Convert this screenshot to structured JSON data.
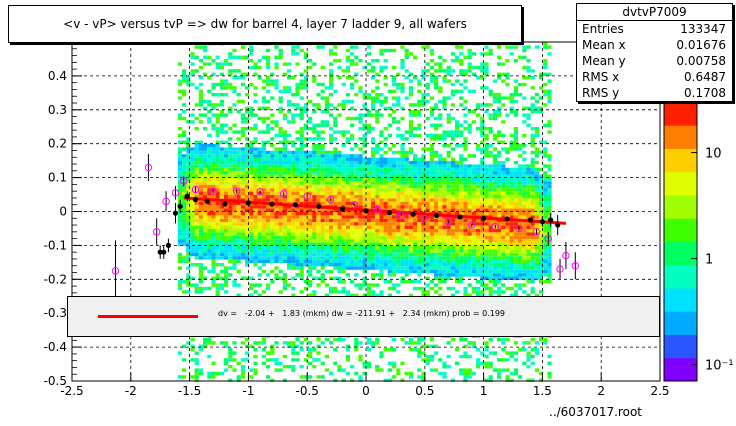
{
  "title": "<v - vP>       versus  tvP =>  dw for barrel 4, layer 7 ladder 9, all wafers",
  "stats": {
    "name": "dvtvP7009",
    "rows": [
      {
        "label": "Entries",
        "value": "133347"
      },
      {
        "label": "Mean x",
        "value": "0.01676"
      },
      {
        "label": "Mean y",
        "value": "0.00758"
      },
      {
        "label": "RMS x",
        "value": "0.6487"
      },
      {
        "label": "RMS y",
        "value": "0.1708"
      }
    ]
  },
  "fit_text": "dv =   -2.04 +   1.83 (mkm) dw = -211.91 +   2.34 (mkm) prob = 0.199",
  "file_label": "../6037017.root",
  "colors": {
    "fit_line": "#ff0000",
    "profile_points": "#000000",
    "open_markers": "#ff00ff",
    "palette": [
      "#8000ff",
      "#2a55ff",
      "#00aaff",
      "#00e0ff",
      "#00ffc0",
      "#00ff60",
      "#40ff00",
      "#a0ff00",
      "#e0ff00",
      "#ffd000",
      "#ff8000",
      "#ff2000"
    ]
  },
  "chart_data": {
    "type": "heatmap",
    "xlim": [
      -2.5,
      2.5
    ],
    "ylim": [
      -0.5,
      0.5
    ],
    "x_ticks": [
      -2.5,
      -2,
      -1.5,
      -1,
      -0.5,
      0,
      0.5,
      1,
      1.5,
      2,
      2.5
    ],
    "x_tick_labels": [
      "-2.5",
      "-2",
      "-1.5",
      "-1",
      "-0.5",
      "0",
      "0.5",
      "1",
      "1.5",
      "2",
      "2.5"
    ],
    "y_ticks": [
      -0.5,
      -0.4,
      -0.3,
      -0.2,
      -0.1,
      0,
      0.1,
      0.2,
      0.3,
      0.4
    ],
    "y_tick_labels": [
      "-0.5",
      "-0.4",
      "-0.3",
      "-0.2",
      "-0.1",
      "0",
      "0.1",
      "0.2",
      "0.3",
      "0.4"
    ],
    "grid": true,
    "density_extent": {
      "x": [
        -1.6,
        1.55
      ],
      "y_center_slope": -0.025,
      "y_sigma": 0.06
    },
    "color_scale": {
      "type": "log",
      "tick_labels": [
        "10",
        "1",
        "10⁻¹"
      ],
      "tick_values": [
        10,
        1,
        0.1
      ],
      "range": [
        0.07,
        30
      ]
    },
    "profile_points": [
      {
        "x": -1.75,
        "y": -0.12,
        "e": 0.02
      },
      {
        "x": -1.72,
        "y": -0.12,
        "e": 0.02
      },
      {
        "x": -1.68,
        "y": -0.1,
        "e": 0.02
      },
      {
        "x": -1.62,
        "y": -0.005,
        "e": 0.03
      },
      {
        "x": -1.58,
        "y": 0.015,
        "e": 0.02
      },
      {
        "x": -1.52,
        "y": 0.045,
        "e": 0.015
      },
      {
        "x": -1.45,
        "y": 0.035,
        "e": 0.008
      },
      {
        "x": -1.35,
        "y": 0.03,
        "e": 0.005
      },
      {
        "x": -1.2,
        "y": 0.022,
        "e": 0.004
      },
      {
        "x": -1.0,
        "y": 0.025,
        "e": 0.003
      },
      {
        "x": -0.8,
        "y": 0.022,
        "e": 0.003
      },
      {
        "x": -0.6,
        "y": 0.02,
        "e": 0.003
      },
      {
        "x": -0.4,
        "y": 0.015,
        "e": 0.003
      },
      {
        "x": -0.2,
        "y": 0.008,
        "e": 0.003
      },
      {
        "x": 0.0,
        "y": 0.002,
        "e": 0.003
      },
      {
        "x": 0.2,
        "y": -0.003,
        "e": 0.003
      },
      {
        "x": 0.4,
        "y": -0.008,
        "e": 0.003
      },
      {
        "x": 0.6,
        "y": -0.012,
        "e": 0.003
      },
      {
        "x": 0.8,
        "y": -0.016,
        "e": 0.003
      },
      {
        "x": 1.0,
        "y": -0.02,
        "e": 0.004
      },
      {
        "x": 1.2,
        "y": -0.022,
        "e": 0.004
      },
      {
        "x": 1.4,
        "y": -0.025,
        "e": 0.006
      },
      {
        "x": 1.5,
        "y": -0.03,
        "e": 0.015
      },
      {
        "x": 1.57,
        "y": -0.025,
        "e": 0.02
      },
      {
        "x": 1.63,
        "y": -0.04,
        "e": 0.03
      }
    ],
    "open_markers": [
      {
        "x": -2.13,
        "y": -0.175,
        "e": 0.09
      },
      {
        "x": -1.85,
        "y": 0.13,
        "e": 0.04
      },
      {
        "x": -1.78,
        "y": -0.06,
        "e": 0.04
      },
      {
        "x": -1.7,
        "y": 0.03,
        "e": 0.03
      },
      {
        "x": -1.62,
        "y": 0.055,
        "e": 0.02
      },
      {
        "x": -1.55,
        "y": 0.09,
        "e": 0.015
      },
      {
        "x": -1.45,
        "y": 0.065,
        "e": 0.01
      },
      {
        "x": -1.3,
        "y": 0.06,
        "e": 0.005
      },
      {
        "x": -1.1,
        "y": 0.06,
        "e": 0.005
      },
      {
        "x": -0.9,
        "y": 0.058,
        "e": 0.004
      },
      {
        "x": -0.7,
        "y": 0.052,
        "e": 0.004
      },
      {
        "x": -0.5,
        "y": 0.045,
        "e": 0.004
      },
      {
        "x": -0.3,
        "y": 0.035,
        "e": 0.004
      },
      {
        "x": -0.1,
        "y": 0.02,
        "e": 0.004
      },
      {
        "x": 0.1,
        "y": 0.005,
        "e": 0.004
      },
      {
        "x": 0.3,
        "y": -0.01,
        "e": 0.004
      },
      {
        "x": 0.5,
        "y": -0.02,
        "e": 0.004
      },
      {
        "x": 0.7,
        "y": -0.03,
        "e": 0.004
      },
      {
        "x": 0.9,
        "y": -0.04,
        "e": 0.005
      },
      {
        "x": 1.1,
        "y": -0.045,
        "e": 0.005
      },
      {
        "x": 1.3,
        "y": -0.05,
        "e": 0.006
      },
      {
        "x": 1.45,
        "y": -0.06,
        "e": 0.01
      },
      {
        "x": 1.55,
        "y": -0.08,
        "e": 0.02
      },
      {
        "x": 1.65,
        "y": -0.17,
        "e": 0.03
      },
      {
        "x": 1.7,
        "y": -0.13,
        "e": 0.04
      },
      {
        "x": 1.78,
        "y": -0.16,
        "e": 0.04
      }
    ],
    "fit_line": {
      "x0": -1.55,
      "y0": 0.04,
      "x1": 1.7,
      "y1": -0.035
    }
  }
}
